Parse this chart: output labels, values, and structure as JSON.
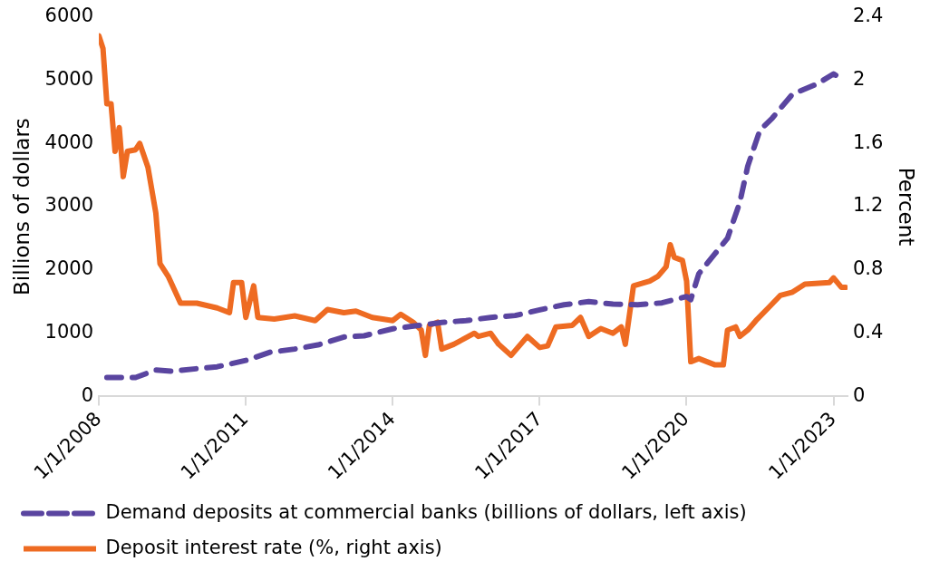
{
  "chart_data": {
    "type": "line",
    "ylabel": "Billions of dollars",
    "y2label": "Percent",
    "grid": false,
    "legend": "bottom",
    "marker": "none",
    "xlim": [
      "2008-01-01",
      "2023-04-15"
    ],
    "xticks": [
      {
        "value": "2008-01-01",
        "label": "1/1/2008"
      },
      {
        "value": "2011-01-01",
        "label": "1/1/2011"
      },
      {
        "value": "2014-01-01",
        "label": "1/1/2014"
      },
      {
        "value": "2017-01-01",
        "label": "1/1/2017"
      },
      {
        "value": "2020-01-01",
        "label": "1/1/2020"
      },
      {
        "value": "2023-01-01",
        "label": "1/1/2023"
      }
    ],
    "ylim": [
      0,
      6000
    ],
    "yticks": [
      0,
      1000,
      2000,
      3000,
      4000,
      5000,
      6000
    ],
    "y2lim": [
      0,
      2.4
    ],
    "y2ticks": [
      0,
      0.4,
      0.8,
      1.2,
      1.6,
      2,
      2.4
    ],
    "series": [
      {
        "name": "Demand deposits at commercial banks (billions of dollars, left axis)",
        "color": "#5a45a0",
        "line_style": "dashed",
        "x": [
          "2008-03",
          "2008-10",
          "2009-03",
          "2009-07",
          "2010-01",
          "2010-06",
          "2011-01",
          "2011-07",
          "2012-01",
          "2012-07",
          "2013-01",
          "2013-06",
          "2014-01",
          "2014-07",
          "2015-01",
          "2015-07",
          "2016-01",
          "2016-07",
          "2017-01",
          "2017-07",
          "2018-01",
          "2018-07",
          "2019-01",
          "2019-07",
          "2020-01",
          "2020-02",
          "2020-04",
          "2020-08",
          "2020-11",
          "2021-02",
          "2021-04",
          "2021-07",
          "2021-10",
          "2022-03",
          "2022-09",
          "2023-01",
          "2023-03"
        ],
        "values": [
          300,
          300,
          420,
          400,
          440,
          470,
          570,
          700,
          750,
          820,
          940,
          960,
          1070,
          1120,
          1170,
          1200,
          1250,
          1280,
          1370,
          1450,
          1500,
          1460,
          1450,
          1480,
          1580,
          1530,
          1940,
          2260,
          2500,
          3070,
          3640,
          4210,
          4400,
          4780,
          4940,
          5100,
          5020
        ]
      },
      {
        "name": "Deposit interest rate (%, right axis)",
        "color": "#ee6b22",
        "axis": "y2",
        "line_style": "solid",
        "x": [
          "2008-01",
          "2008-02",
          "2008-03",
          "2008-04",
          "2008-05",
          "2008-06",
          "2008-07",
          "2008-08",
          "2008-10",
          "2008-11",
          "2009-01",
          "2009-03",
          "2009-04",
          "2009-06",
          "2009-09",
          "2010-01",
          "2010-06",
          "2010-09",
          "2010-10",
          "2010-12",
          "2011-01",
          "2011-03",
          "2011-04",
          "2011-08",
          "2012-01",
          "2012-06",
          "2012-09",
          "2013-01",
          "2013-04",
          "2013-08",
          "2014-01",
          "2014-03",
          "2014-06",
          "2014-08",
          "2014-09",
          "2014-10",
          "2014-12",
          "2015-01",
          "2015-04",
          "2015-09",
          "2015-10",
          "2016-01",
          "2016-03",
          "2016-06",
          "2016-10",
          "2017-01",
          "2017-03",
          "2017-05",
          "2017-09",
          "2017-11",
          "2018-01",
          "2018-04",
          "2018-07",
          "2018-09",
          "2018-10",
          "2018-12",
          "2019-04",
          "2019-06",
          "2019-08",
          "2019-09",
          "2019-10",
          "2019-12",
          "2020-01",
          "2020-02",
          "2020-04",
          "2020-08",
          "2020-10",
          "2020-11",
          "2021-01",
          "2021-02",
          "2021-04",
          "2021-06",
          "2021-09",
          "2021-12",
          "2022-03",
          "2022-06",
          "2022-12",
          "2023-01",
          "2023-03",
          "2023-04"
        ],
        "values": [
          2.28,
          2.2,
          1.85,
          1.85,
          1.55,
          1.7,
          1.39,
          1.55,
          1.56,
          1.6,
          1.45,
          1.16,
          0.84,
          0.76,
          0.59,
          0.59,
          0.56,
          0.53,
          0.72,
          0.72,
          0.5,
          0.7,
          0.5,
          0.49,
          0.51,
          0.48,
          0.55,
          0.53,
          0.54,
          0.5,
          0.48,
          0.52,
          0.47,
          0.42,
          0.26,
          0.45,
          0.47,
          0.3,
          0.33,
          0.4,
          0.38,
          0.4,
          0.33,
          0.26,
          0.38,
          0.31,
          0.32,
          0.44,
          0.45,
          0.5,
          0.38,
          0.43,
          0.4,
          0.44,
          0.33,
          0.7,
          0.73,
          0.76,
          0.82,
          0.96,
          0.88,
          0.86,
          0.73,
          0.22,
          0.24,
          0.2,
          0.2,
          0.42,
          0.44,
          0.38,
          0.42,
          0.48,
          0.56,
          0.64,
          0.66,
          0.71,
          0.72,
          0.75,
          0.69,
          0.69
        ]
      }
    ]
  }
}
